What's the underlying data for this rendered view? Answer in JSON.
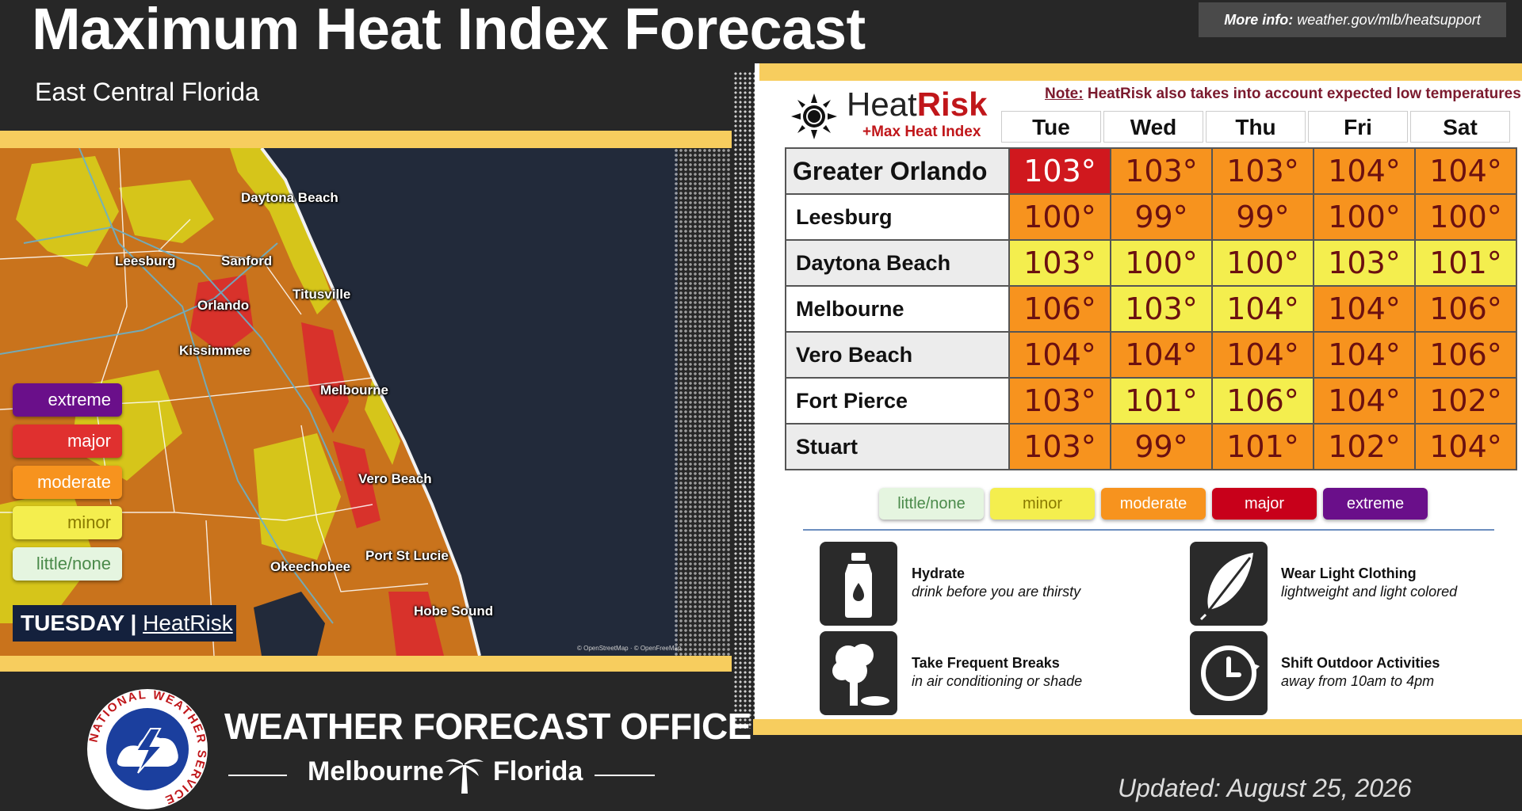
{
  "header": {
    "title": "Maximum Heat Index Forecast",
    "subtitle": "East Central Florida",
    "more_info_label": "More info:",
    "more_info_url": "weather.gov/mlb/heatsupport"
  },
  "map": {
    "legend": [
      {
        "label": "extreme",
        "color": "#6a0f8a",
        "text_color": "#ffffff"
      },
      {
        "label": "major",
        "color": "#e0302f",
        "text_color": "#ffffff"
      },
      {
        "label": "moderate",
        "color": "#f7931e",
        "text_color": "#ffffff"
      },
      {
        "label": "minor",
        "color": "#f4ee4e",
        "text_color": "#8a7a00"
      },
      {
        "label": "little/none",
        "color": "#e5f5e0",
        "text_color": "#4a8a4a"
      }
    ],
    "day_label": "TUESDAY",
    "separator": "|",
    "product_label": "HeatRisk",
    "cities": [
      "Daytona Beach",
      "Leesburg",
      "Sanford",
      "Titusville",
      "Orlando",
      "Kissimmee",
      "Melbourne",
      "Vero Beach",
      "Port St Lucie",
      "Okeechobee",
      "Hobe Sound"
    ],
    "credit": "© OpenStreetMap · © OpenFreeMap"
  },
  "panel": {
    "logo_heat": "Heat",
    "logo_risk": "Risk",
    "logo_sub": "+Max Heat Index",
    "note_label": "Note:",
    "note_text": "HeatRisk also takes into account expected low temperatures.",
    "days": [
      "Tue",
      "Wed",
      "Thu",
      "Fri",
      "Sat"
    ],
    "rows": [
      {
        "location": "Greater Orlando",
        "values": [
          "103°",
          "103°",
          "103°",
          "104°",
          "104°"
        ],
        "levels": [
          "major",
          "moderate",
          "moderate",
          "moderate",
          "moderate"
        ]
      },
      {
        "location": "Leesburg",
        "values": [
          "100°",
          "99°",
          "99°",
          "100°",
          "100°"
        ],
        "levels": [
          "moderate",
          "moderate",
          "moderate",
          "moderate",
          "moderate"
        ]
      },
      {
        "location": "Daytona Beach",
        "values": [
          "103°",
          "100°",
          "100°",
          "103°",
          "101°"
        ],
        "levels": [
          "minor",
          "minor",
          "minor",
          "minor",
          "minor"
        ]
      },
      {
        "location": "Melbourne",
        "values": [
          "106°",
          "103°",
          "104°",
          "104°",
          "106°"
        ],
        "levels": [
          "moderate",
          "minor",
          "minor",
          "moderate",
          "moderate"
        ]
      },
      {
        "location": "Vero Beach",
        "values": [
          "104°",
          "104°",
          "104°",
          "104°",
          "106°"
        ],
        "levels": [
          "moderate",
          "moderate",
          "moderate",
          "moderate",
          "moderate"
        ]
      },
      {
        "location": "Fort Pierce",
        "values": [
          "103°",
          "101°",
          "106°",
          "104°",
          "102°"
        ],
        "levels": [
          "moderate",
          "minor",
          "minor",
          "moderate",
          "moderate"
        ]
      },
      {
        "location": "Stuart",
        "values": [
          "103°",
          "99°",
          "101°",
          "102°",
          "104°"
        ],
        "levels": [
          "moderate",
          "moderate",
          "moderate",
          "moderate",
          "moderate"
        ]
      }
    ],
    "level_colors": {
      "little/none": "#e5f5e0",
      "minor": "#f4ee4e",
      "moderate": "#f7931e",
      "major": "#d0181e",
      "extreme": "#6a0f8a"
    },
    "pills": [
      {
        "label": "little/none",
        "color": "#e5f5e0",
        "text_color": "#4a8a4a"
      },
      {
        "label": "minor",
        "color": "#f4ee4e",
        "text_color": "#8a7a00"
      },
      {
        "label": "moderate",
        "color": "#f7931e",
        "text_color": "#ffffff"
      },
      {
        "label": "major",
        "color": "#c8001a",
        "text_color": "#ffffff"
      },
      {
        "label": "extreme",
        "color": "#6a0f8a",
        "text_color": "#ffffff"
      }
    ],
    "tips": [
      {
        "icon": "water-bottle-icon",
        "title": "Hydrate",
        "subtitle": "drink before you are thirsty"
      },
      {
        "icon": "feather-icon",
        "title": "Wear Light Clothing",
        "subtitle": "lightweight and light colored"
      },
      {
        "icon": "tree-shade-icon",
        "title": "Take Frequent Breaks",
        "subtitle": "in air conditioning or shade"
      },
      {
        "icon": "clock-icon",
        "title": "Shift Outdoor Activities",
        "subtitle": "away from 10am to 4pm"
      }
    ]
  },
  "footer": {
    "office": "WEATHER FORECAST OFFICE",
    "city": "Melbourne",
    "state": "Florida",
    "seal_text": "NATIONAL WEATHER SERVICE",
    "updated": "Updated: August 25, 2026"
  }
}
